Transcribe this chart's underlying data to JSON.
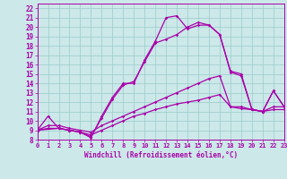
{
  "xlabel": "Windchill (Refroidissement éolien,°C)",
  "bg_color": "#cce8e8",
  "line_color": "#aa00aa",
  "grid_color": "#99cccc",
  "xlim": [
    0,
    23
  ],
  "ylim": [
    8,
    22.5
  ],
  "xticks": [
    0,
    1,
    2,
    3,
    4,
    5,
    6,
    7,
    8,
    9,
    10,
    11,
    12,
    13,
    14,
    15,
    16,
    17,
    18,
    19,
    20,
    21,
    22,
    23
  ],
  "yticks": [
    8,
    9,
    10,
    11,
    12,
    13,
    14,
    15,
    16,
    17,
    18,
    19,
    20,
    21,
    22
  ],
  "lines": [
    {
      "x": [
        0,
        1,
        2,
        3,
        4,
        5,
        6,
        7,
        8,
        9,
        10,
        11,
        12,
        13,
        14,
        15,
        16,
        17,
        18,
        19,
        20,
        21,
        22,
        23
      ],
      "y": [
        9.0,
        10.5,
        9.2,
        9.0,
        8.8,
        8.2,
        10.5,
        12.5,
        14.0,
        14.0,
        16.5,
        18.5,
        21.0,
        21.2,
        19.8,
        20.2,
        20.2,
        19.2,
        15.3,
        15.0,
        11.2,
        11.0,
        13.2,
        11.5
      ]
    },
    {
      "x": [
        0,
        2,
        3,
        4,
        5,
        6,
        7,
        8,
        9,
        10,
        11,
        12,
        13,
        14,
        15,
        16,
        17,
        18,
        19,
        20,
        21,
        22,
        23
      ],
      "y": [
        9.0,
        9.2,
        9.0,
        8.8,
        8.3,
        10.3,
        12.3,
        13.8,
        14.2,
        16.3,
        18.3,
        18.7,
        19.2,
        20.0,
        20.5,
        20.2,
        19.2,
        15.2,
        14.8,
        11.2,
        11.0,
        13.2,
        11.5
      ]
    },
    {
      "x": [
        0,
        1,
        2,
        3,
        4,
        5,
        6,
        7,
        8,
        9,
        10,
        11,
        12,
        13,
        14,
        15,
        16,
        17,
        18,
        19,
        20,
        21,
        22,
        23
      ],
      "y": [
        9.0,
        9.5,
        9.5,
        9.2,
        9.0,
        8.8,
        9.5,
        10.0,
        10.5,
        11.0,
        11.5,
        12.0,
        12.5,
        13.0,
        13.5,
        14.0,
        14.5,
        14.8,
        11.5,
        11.5,
        11.2,
        11.0,
        11.5,
        11.5
      ]
    },
    {
      "x": [
        0,
        1,
        2,
        3,
        4,
        5,
        6,
        7,
        8,
        9,
        10,
        11,
        12,
        13,
        14,
        15,
        16,
        17,
        18,
        19,
        20,
        21,
        22,
        23
      ],
      "y": [
        9.0,
        9.2,
        9.2,
        9.0,
        8.8,
        8.5,
        9.0,
        9.5,
        10.0,
        10.5,
        10.8,
        11.2,
        11.5,
        11.8,
        12.0,
        12.2,
        12.5,
        12.8,
        11.5,
        11.3,
        11.2,
        11.0,
        11.2,
        11.2
      ]
    }
  ]
}
